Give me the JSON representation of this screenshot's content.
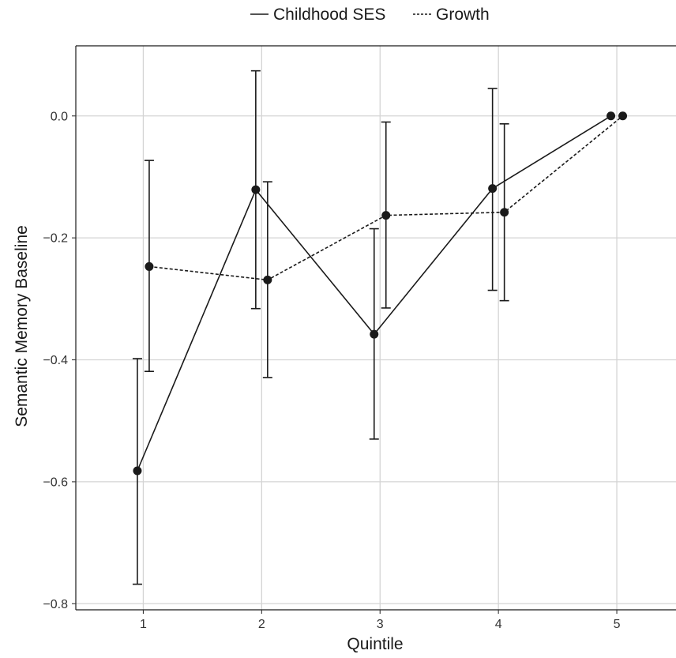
{
  "chart_data": {
    "type": "line",
    "xlabel": "Quintile",
    "ylabel": "Semantic Memory Baseline",
    "x": [
      1,
      2,
      3,
      4,
      5
    ],
    "xlim": [
      0.43,
      5.5
    ],
    "ylim": [
      -0.81,
      0.115
    ],
    "x_ticks": [
      1,
      2,
      3,
      4,
      5
    ],
    "x_tick_labels": [
      "1",
      "2",
      "3",
      "4",
      "5"
    ],
    "y_ticks": [
      -0.8,
      -0.6,
      -0.4,
      -0.2,
      0.0
    ],
    "y_tick_labels": [
      "−0.8",
      "−0.6",
      "−0.4",
      "−0.2",
      "0.0"
    ],
    "grid": true,
    "legend_position": "top",
    "series": [
      {
        "name": "Childhood SES",
        "line_style": "solid",
        "color": "#1a1a1a",
        "dodge": -0.05,
        "values": [
          -0.582,
          -0.121,
          -0.358,
          -0.119,
          0.0
        ],
        "ci_lower": [
          -0.768,
          -0.316,
          -0.53,
          -0.286,
          null
        ],
        "ci_upper": [
          -0.398,
          0.074,
          -0.185,
          0.045,
          null
        ]
      },
      {
        "name": "Growth",
        "line_style": "dashed",
        "color": "#1a1a1a",
        "dodge": 0.05,
        "values": [
          -0.247,
          -0.269,
          -0.163,
          -0.158,
          0.0
        ],
        "ci_lower": [
          -0.419,
          -0.429,
          -0.315,
          -0.303,
          null
        ],
        "ci_upper": [
          -0.073,
          -0.108,
          -0.01,
          -0.013,
          null
        ]
      }
    ]
  }
}
